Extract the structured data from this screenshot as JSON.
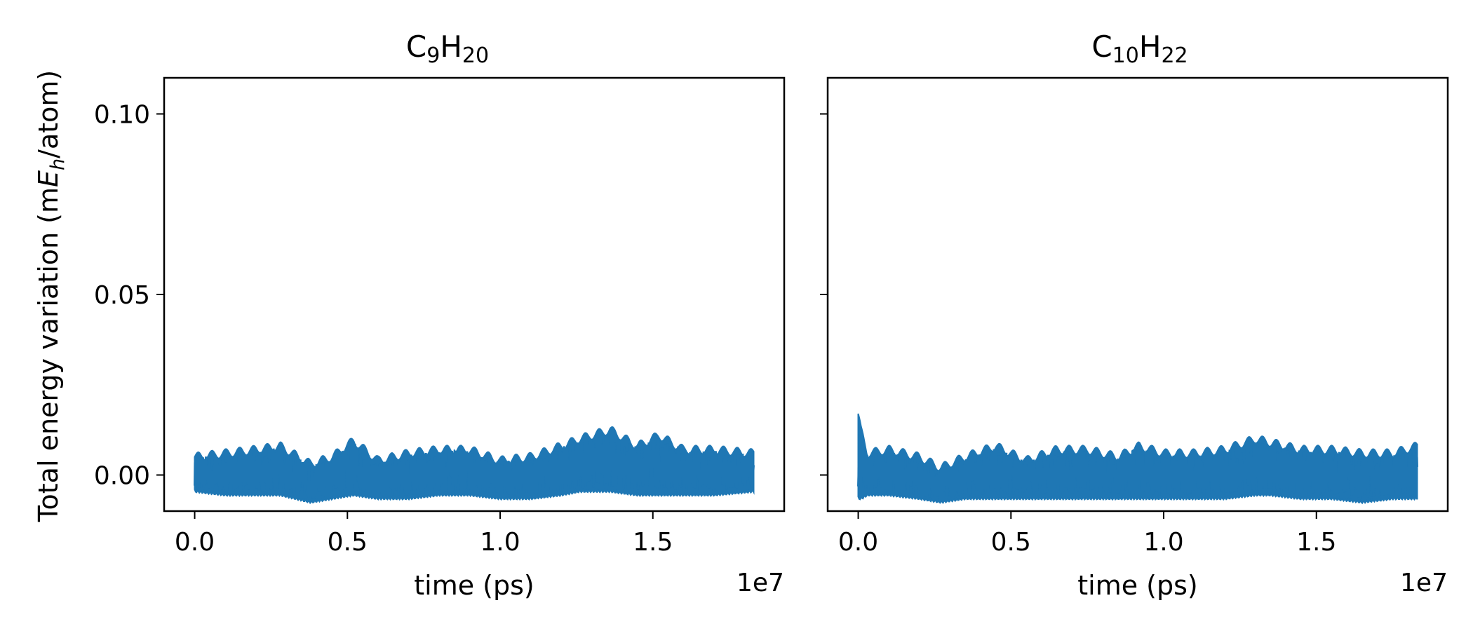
{
  "ylabel": {
    "pre": "Total energy variation (m",
    "sym": "E",
    "sub": "h",
    "post": "/atom)"
  },
  "colors": {
    "series": "#1f77b4"
  },
  "chart_data": [
    {
      "type": "line",
      "title": {
        "base1": "C",
        "sub1": "9",
        "base2": "H",
        "sub2": "20"
      },
      "xlabel": "time (ps)",
      "x_offset_label": "1e7",
      "xlim": [
        -1000000,
        19300000
      ],
      "ylim": [
        -0.01,
        0.11
      ],
      "xticks": [
        0,
        5000000,
        10000000,
        15000000
      ],
      "xtick_labels": [
        "0.0",
        "0.5",
        "1.0",
        "1.5"
      ],
      "yticks": [
        0.0,
        0.05,
        0.1
      ],
      "ytick_labels": [
        "0.00",
        "0.05",
        "0.10"
      ],
      "x_end": 18300000,
      "series": [
        {
          "envelope_x": [
            0,
            1000000,
            2000000,
            2800000,
            3800000,
            4500000,
            5200000,
            6000000,
            7000000,
            8000000,
            9000000,
            10000000,
            11000000,
            12000000,
            12600000,
            13600000,
            14500000,
            15200000,
            16000000,
            17000000,
            18300000
          ],
          "envelope_max": [
            0.005,
            0.006,
            0.007,
            0.008,
            0.003,
            0.005,
            0.0095,
            0.004,
            0.006,
            0.007,
            0.007,
            0.004,
            0.005,
            0.008,
            0.01,
            0.0125,
            0.008,
            0.011,
            0.007,
            0.007,
            0.006
          ],
          "envelope_min": [
            -0.004,
            -0.005,
            -0.005,
            -0.005,
            -0.007,
            -0.006,
            -0.005,
            -0.006,
            -0.006,
            -0.005,
            -0.005,
            -0.006,
            -0.006,
            -0.005,
            -0.004,
            -0.004,
            -0.005,
            -0.005,
            -0.005,
            -0.005,
            -0.004
          ]
        }
      ]
    },
    {
      "type": "line",
      "title": {
        "base1": "C",
        "sub1": "10",
        "base2": "H",
        "sub2": "22"
      },
      "xlabel": "time (ps)",
      "x_offset_label": "1e7",
      "xlim": [
        -1000000,
        19300000
      ],
      "ylim": [
        -0.01,
        0.11
      ],
      "xticks": [
        0,
        5000000,
        10000000,
        15000000
      ],
      "xtick_labels": [
        "0.0",
        "0.5",
        "1.0",
        "1.5"
      ],
      "yticks": [
        0.0,
        0.05,
        0.1
      ],
      "ytick_labels": [
        "",
        "",
        ""
      ],
      "x_end": 18300000,
      "series": [
        {
          "envelope_x": [
            0,
            100000,
            300000,
            1000000,
            2000000,
            2700000,
            3500000,
            4500000,
            5500000,
            6500000,
            7500000,
            8500000,
            9200000,
            10000000,
            11000000,
            12000000,
            13000000,
            13500000,
            14500000,
            15500000,
            16500000,
            17500000,
            18300000
          ],
          "envelope_max": [
            0.017,
            0.012,
            0.006,
            0.007,
            0.005,
            0.002,
            0.005,
            0.008,
            0.004,
            0.007,
            0.007,
            0.005,
            0.008,
            0.006,
            0.006,
            0.007,
            0.01,
            0.009,
            0.007,
            0.007,
            0.006,
            0.006,
            0.008
          ],
          "envelope_min": [
            -0.006,
            -0.006,
            -0.005,
            -0.005,
            -0.006,
            -0.007,
            -0.006,
            -0.006,
            -0.006,
            -0.006,
            -0.006,
            -0.006,
            -0.006,
            -0.006,
            -0.006,
            -0.006,
            -0.005,
            -0.005,
            -0.006,
            -0.006,
            -0.007,
            -0.006,
            -0.006
          ]
        }
      ]
    }
  ]
}
